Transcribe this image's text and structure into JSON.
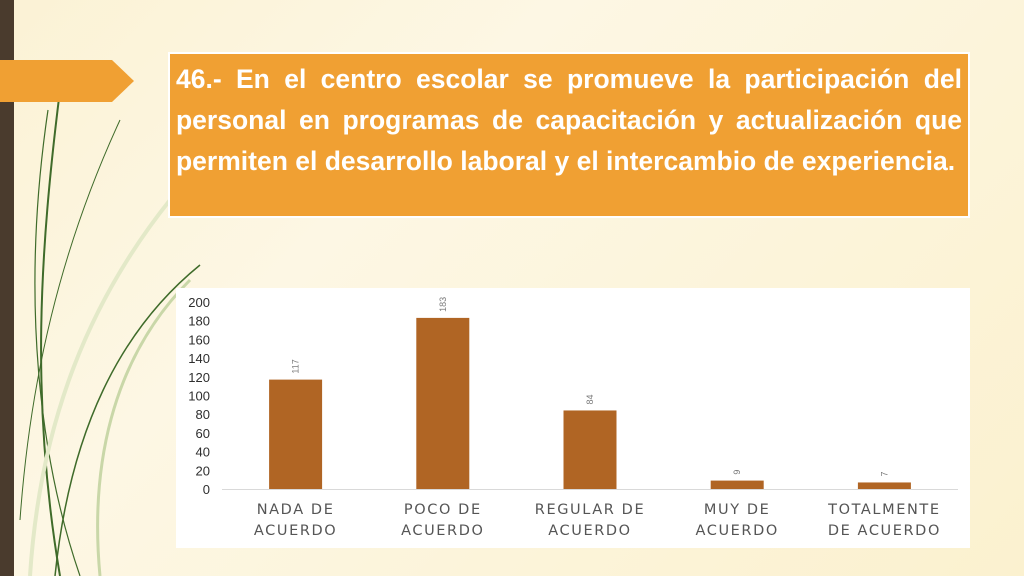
{
  "slide": {
    "title": "46.- En el centro escolar se promueve la participación del personal en programas de capacitación y actualización que permiten el desarrollo laboral y el intercambio de experiencia."
  },
  "colors": {
    "title_bg": "#f0a033",
    "bar": "#b06524",
    "left_bar": "#4a3b2d"
  },
  "chart_data": {
    "type": "bar",
    "categories": [
      [
        "NADA DE",
        "ACUERDO"
      ],
      [
        "POCO DE",
        "ACUERDO"
      ],
      [
        "REGULAR DE",
        "ACUERDO"
      ],
      [
        "MUY DE",
        "ACUERDO"
      ],
      [
        "TOTALMENTE",
        "DE ACUERDO"
      ]
    ],
    "values": [
      117,
      183,
      84,
      9,
      7
    ],
    "ylim": [
      0,
      200
    ],
    "yticks": [
      0,
      20,
      40,
      60,
      80,
      100,
      120,
      140,
      160,
      180,
      200
    ],
    "grid": false,
    "data_labels": true
  }
}
